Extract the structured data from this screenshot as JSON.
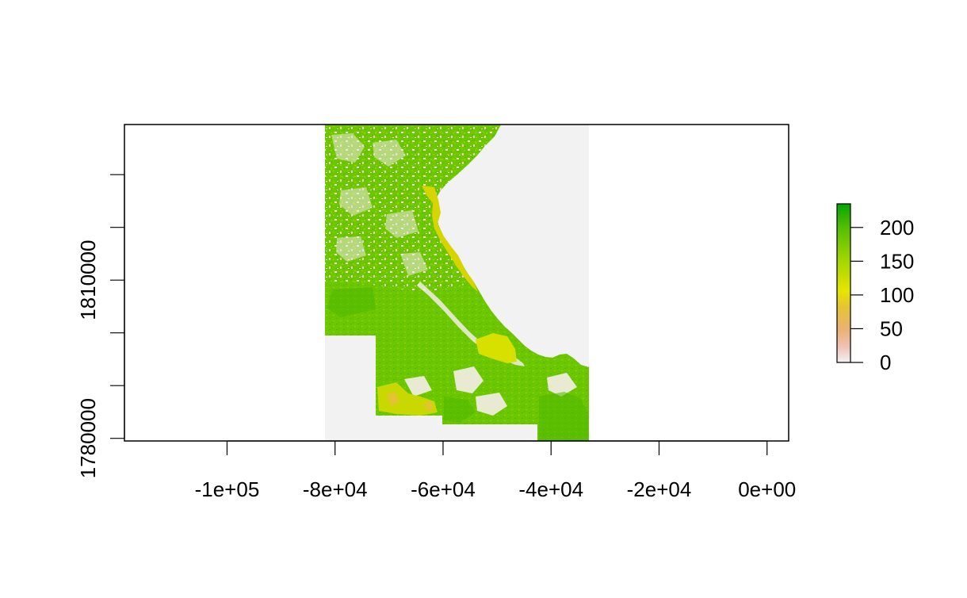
{
  "map": {
    "type": "raster",
    "xlim": [
      -119000,
      4000
    ],
    "ylim": [
      1779500,
      1839500
    ],
    "x_ticks": [
      {
        "value": -100000,
        "label": "-1e+05"
      },
      {
        "value": -80000,
        "label": "-8e+04"
      },
      {
        "value": -60000,
        "label": "-6e+04"
      },
      {
        "value": -40000,
        "label": "-4e+04"
      },
      {
        "value": -20000,
        "label": "-2e+04"
      },
      {
        "value": 0,
        "label": "0e+00"
      }
    ],
    "y_ticks": [
      {
        "value": 1780000,
        "label": "1780000"
      },
      {
        "value": 1790000,
        "label": ""
      },
      {
        "value": 1800000,
        "label": ""
      },
      {
        "value": 1810000,
        "label": "1810000"
      },
      {
        "value": 1820000,
        "label": ""
      },
      {
        "value": 1830000,
        "label": ""
      }
    ],
    "raster_extent": {
      "xmin": -82500,
      "xmax": -33500,
      "ymin": 1779500,
      "ymax": 1839500
    },
    "na_color": "#f2f2f2",
    "legend": {
      "placement": "right",
      "min": 0,
      "max": 235,
      "ticks": [
        {
          "value": 0,
          "label": "0"
        },
        {
          "value": 50,
          "label": "50"
        },
        {
          "value": 100,
          "label": "100"
        },
        {
          "value": 150,
          "label": "150"
        },
        {
          "value": 200,
          "label": "200"
        }
      ],
      "colors": [
        "#f2f2f2",
        "#efc2b3",
        "#ecb176",
        "#e6c333",
        "#e6e600",
        "#c3dd00",
        "#a0d600",
        "#79c900",
        "#52bf00",
        "#2bb100",
        "#00a600"
      ]
    }
  }
}
